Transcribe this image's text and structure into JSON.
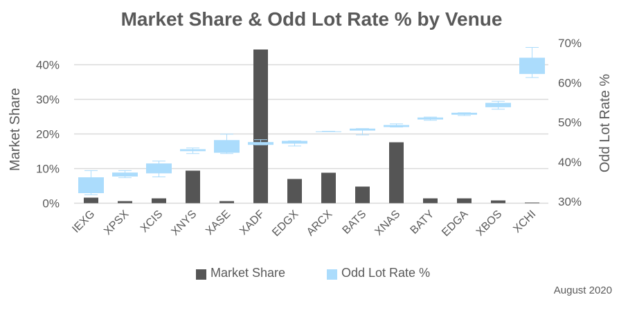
{
  "chart_data": {
    "type": "bar+boxplot",
    "title": "Market Share & Odd Lot Rate % by Venue",
    "footnote": "August 2020",
    "categories": [
      "IEXG",
      "XPSX",
      "XCIS",
      "XNYS",
      "XASE",
      "XADF",
      "EDGX",
      "ARCX",
      "BATS",
      "XNAS",
      "BATY",
      "EDGA",
      "XBOS",
      "XCHI"
    ],
    "left_axis": {
      "label": "Market Share",
      "ylim": [
        0,
        45
      ],
      "ticks": [
        "0%",
        "10%",
        "20%",
        "30%",
        "40%"
      ],
      "tick_values": [
        0,
        10,
        20,
        30,
        40
      ]
    },
    "right_axis": {
      "label": "Odd Lot Rate %",
      "ylim": [
        30,
        70
      ],
      "ticks": [
        "30%",
        "40%",
        "50%",
        "60%",
        "70%"
      ],
      "tick_values": [
        30,
        40,
        50,
        60,
        70
      ]
    },
    "grid": true,
    "legend": {
      "placement": "bottom",
      "items": [
        "Market Share",
        "Odd Lot Rate %"
      ]
    },
    "colors": {
      "bars": "#555555",
      "boxes": "#abdcfc",
      "grid": "#d9d9d9",
      "text": "#595959"
    },
    "series": [
      {
        "name": "Market Share",
        "kind": "bar",
        "axis": "left",
        "values": [
          1.6,
          0.6,
          1.4,
          9.4,
          0.6,
          44.4,
          7.0,
          8.8,
          4.8,
          17.6,
          1.4,
          1.4,
          0.8,
          0.2
        ]
      },
      {
        "name": "Odd Lot Rate %",
        "kind": "boxplot",
        "axis": "right",
        "boxes": [
          {
            "min": 31.7,
            "q1": 32.1,
            "q3": 36.1,
            "max": 37.8
          },
          {
            "min": 36.0,
            "q1": 36.3,
            "q3": 37.3,
            "max": 37.8
          },
          {
            "min": 36.2,
            "q1": 37.1,
            "q3": 39.6,
            "max": 40.2
          },
          {
            "min": 42.1,
            "q1": 42.7,
            "q3": 43.2,
            "max": 43.5
          },
          {
            "min": 42.1,
            "q1": 42.3,
            "q3": 45.5,
            "max": 47.0
          },
          {
            "min": 44.3,
            "q1": 44.3,
            "q3": 45.0,
            "max": 45.6
          },
          {
            "min": 44.0,
            "q1": 44.6,
            "q3": 45.3,
            "max": 45.3
          },
          {
            "min": 47.7,
            "q1": 47.7,
            "q3": 47.7,
            "max": 47.7
          },
          {
            "min": 46.8,
            "q1": 47.9,
            "q3": 48.4,
            "max": 48.4
          },
          {
            "min": 48.8,
            "q1": 48.8,
            "q3": 49.3,
            "max": 49.6
          },
          {
            "min": 50.5,
            "q1": 50.7,
            "q3": 51.2,
            "max": 51.3
          },
          {
            "min": 51.7,
            "q1": 51.9,
            "q3": 52.4,
            "max": 52.4
          },
          {
            "min": 53.3,
            "q1": 53.8,
            "q3": 54.9,
            "max": 55.3
          },
          {
            "min": 61.3,
            "q1": 62.2,
            "q3": 66.3,
            "max": 68.9
          }
        ]
      }
    ]
  }
}
